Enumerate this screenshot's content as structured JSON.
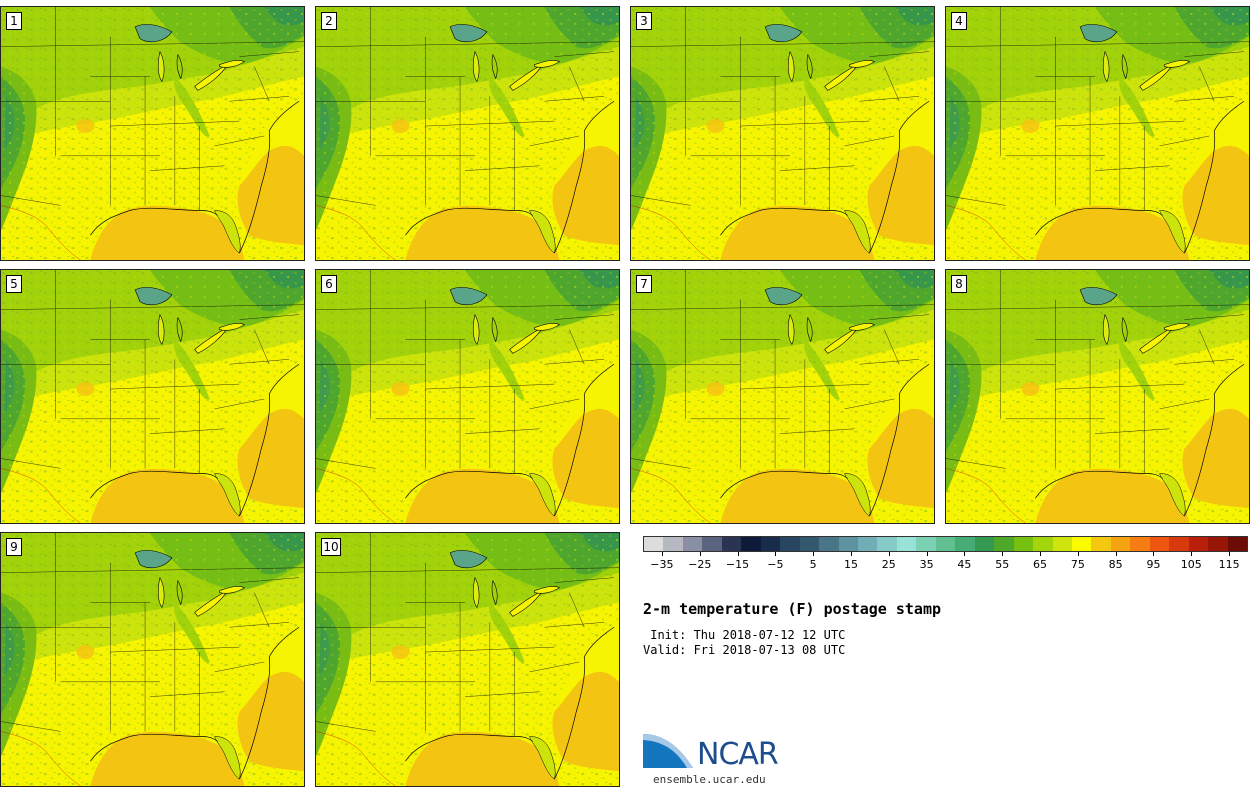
{
  "panels": [
    {
      "label": "1"
    },
    {
      "label": "2"
    },
    {
      "label": "3"
    },
    {
      "label": "4"
    },
    {
      "label": "5"
    },
    {
      "label": "6"
    },
    {
      "label": "7"
    },
    {
      "label": "8"
    },
    {
      "label": "9"
    },
    {
      "label": "10"
    }
  ],
  "colorbar": {
    "colors": [
      "#dcdcdc",
      "#b6b8c2",
      "#8a8fa6",
      "#5a6480",
      "#2c3454",
      "#0e1a3a",
      "#1a2c4c",
      "#274661",
      "#34586f",
      "#497586",
      "#5e929e",
      "#72aeb5",
      "#86cbca",
      "#98e2d8",
      "#7bd1b2",
      "#60c092",
      "#46ad74",
      "#349a52",
      "#4ea82a",
      "#76c012",
      "#a4d40a",
      "#cee40c",
      "#fcfc00",
      "#f4c80e",
      "#f4a410",
      "#f47e12",
      "#ee5612",
      "#d8380e",
      "#b8200c",
      "#981606",
      "#6c0c06"
    ],
    "tick_labels": [
      "-35",
      "-25",
      "-15",
      "-5",
      "5",
      "15",
      "25",
      "35",
      "45",
      "55",
      "65",
      "75",
      "85",
      "95",
      "105",
      "115"
    ],
    "range": [
      -40,
      120
    ]
  },
  "title": "2-m temperature (F) postage stamp",
  "init": " Init: Thu 2018-07-12 12 UTC",
  "valid": "Valid: Fri 2018-07-13 08 UTC",
  "logo": {
    "text": "NCAR",
    "url": "ensemble.ucar.edu"
  }
}
